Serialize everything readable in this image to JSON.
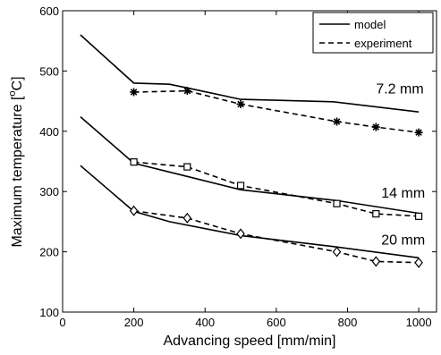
{
  "chart_data": {
    "type": "line",
    "xlabel": "Advancing speed [mm/min]",
    "ylabel_parts": {
      "before": "Maximum temperature [",
      "sup": "o",
      "after": "C]"
    },
    "xlim": [
      0,
      1050
    ],
    "ylim": [
      100,
      600
    ],
    "xticks": [
      0,
      200,
      400,
      600,
      800,
      1000
    ],
    "yticks": [
      100,
      200,
      300,
      400,
      500,
      600
    ],
    "grid": false,
    "legend": {
      "position": "top-right",
      "entries": [
        {
          "label": "model",
          "style": "solid"
        },
        {
          "label": "experiment",
          "style": "dashed"
        }
      ]
    },
    "series": [
      {
        "group": "7.2 mm",
        "kind": "model",
        "style": "solid",
        "x": [
          50,
          200,
          300,
          350,
          500,
          760,
          1000
        ],
        "y": [
          560,
          480,
          478,
          472,
          453,
          449,
          432
        ]
      },
      {
        "group": "7.2 mm",
        "kind": "experiment",
        "style": "dashed",
        "marker": "asterisk",
        "x": [
          200,
          350,
          500,
          770,
          880,
          1000
        ],
        "y": [
          465,
          467,
          445,
          416,
          407,
          398
        ]
      },
      {
        "group": "14 mm",
        "kind": "model",
        "style": "solid",
        "x": [
          50,
          200,
          350,
          500,
          770,
          1000
        ],
        "y": [
          424,
          347,
          325,
          303,
          285,
          264
        ]
      },
      {
        "group": "14 mm",
        "kind": "experiment",
        "style": "dashed",
        "marker": "square",
        "x": [
          200,
          350,
          500,
          770,
          880,
          1000
        ],
        "y": [
          349,
          341,
          310,
          280,
          263,
          259
        ]
      },
      {
        "group": "20 mm",
        "kind": "model",
        "style": "solid",
        "x": [
          50,
          200,
          300,
          500,
          770,
          1000
        ],
        "y": [
          343,
          267,
          250,
          227,
          208,
          190
        ]
      },
      {
        "group": "20 mm",
        "kind": "experiment",
        "style": "dashed",
        "marker": "diamond",
        "x": [
          200,
          350,
          500,
          770,
          880,
          1000
        ],
        "y": [
          268,
          256,
          230,
          200,
          184,
          182
        ]
      }
    ],
    "annotations": [
      {
        "text": "7.2 mm",
        "x": 880,
        "y": 463
      },
      {
        "text": "14 mm",
        "x": 895,
        "y": 290
      },
      {
        "text": "20 mm",
        "x": 895,
        "y": 212
      }
    ]
  }
}
